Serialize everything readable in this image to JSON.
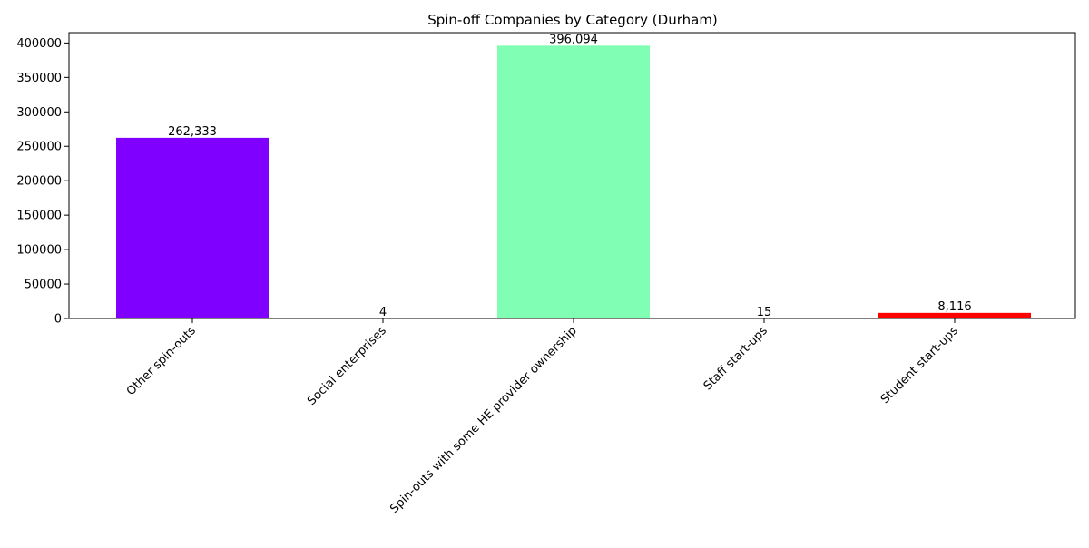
{
  "chart_data": {
    "type": "bar",
    "title": "Spin-off Companies by Category (Durham)",
    "xlabel": "",
    "ylabel": "",
    "categories": [
      "Other spin-outs",
      "Social enterprises",
      "Spin-outs with some HE provider ownership",
      "Staff start-ups",
      "Student start-ups"
    ],
    "values": [
      262333,
      4,
      396094,
      15,
      8116
    ],
    "value_labels": [
      "262,333",
      "4",
      "396,094",
      "15",
      "8,116"
    ],
    "colors": [
      "#8000ff",
      "#2adddd",
      "#80ffb4",
      "#ffb360",
      "#ff0000"
    ],
    "ylim": [
      0,
      415000
    ],
    "yticks": [
      0,
      50000,
      100000,
      150000,
      200000,
      250000,
      300000,
      350000,
      400000
    ],
    "ytick_labels": [
      "0",
      "50000",
      "100000",
      "150000",
      "200000",
      "250000",
      "300000",
      "350000",
      "400000"
    ],
    "xtick_rotation": 45,
    "grid": false,
    "legend": "none"
  }
}
